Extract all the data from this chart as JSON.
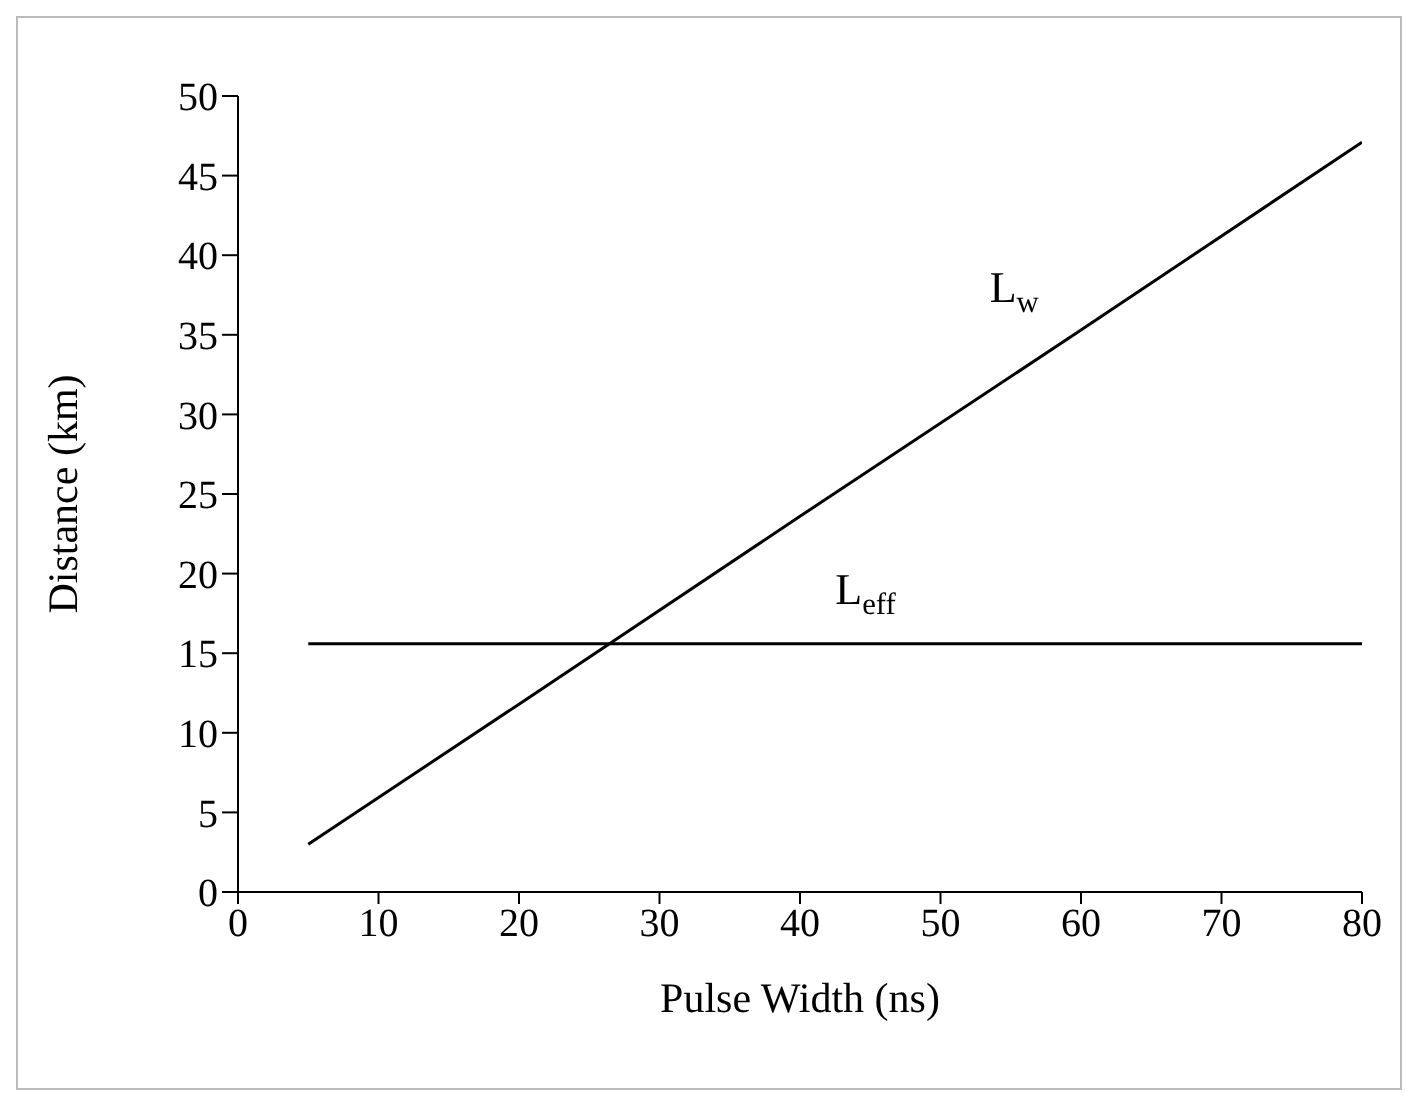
{
  "chart_data": {
    "type": "line",
    "xlabel": "Pulse Width (ns)",
    "ylabel": "Distance (km)",
    "series": [
      {
        "name": "L$_{w}$",
        "color": "#000000",
        "x": [
          5,
          20,
          40,
          60,
          80
        ],
        "values": [
          3,
          11.8,
          23.6,
          35.3,
          47.1
        ]
      },
      {
        "name": "L$_{eff}$",
        "color": "#000000",
        "x": [
          5,
          80
        ],
        "values": [
          15.6,
          15.6
        ]
      }
    ],
    "xlim": [
      0,
      80
    ],
    "xticks": [
      0,
      10,
      20,
      30,
      40,
      50,
      60,
      70,
      80
    ],
    "ylim": [
      0,
      50
    ],
    "yticks": [
      0,
      5,
      10,
      15,
      20,
      25,
      30,
      35,
      40,
      45,
      50
    ],
    "grid": false,
    "legend": false,
    "marker": "none",
    "line_style": "solid"
  }
}
